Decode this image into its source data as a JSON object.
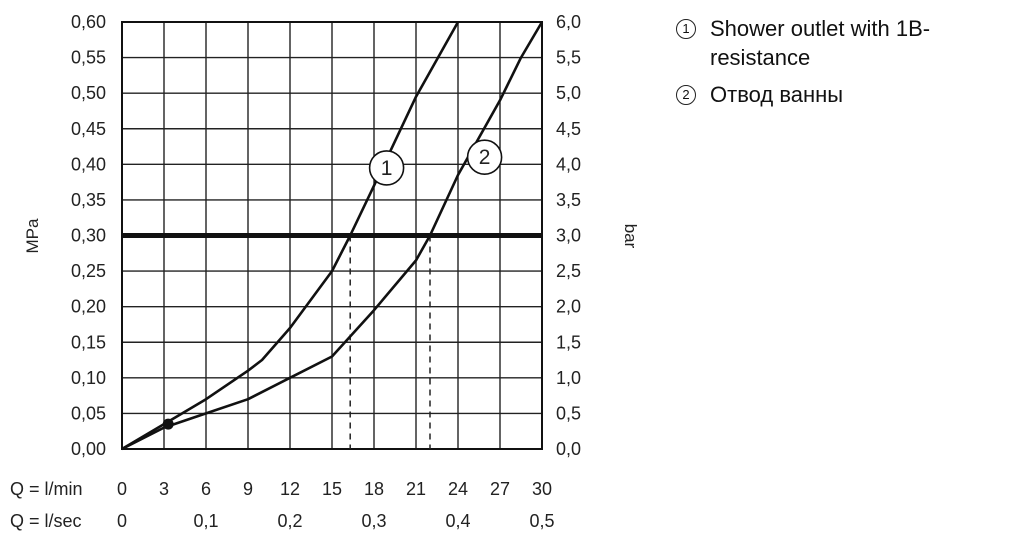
{
  "chart_data": {
    "type": "line",
    "title": "",
    "xlabel": "",
    "ylabel_left": "MPa",
    "ylabel_right": "bar",
    "x_range": [
      0,
      30
    ],
    "y_range": [
      0,
      0.6
    ],
    "y_right_range": [
      0,
      6.0
    ],
    "grid": true,
    "x_ticks_lmin": [
      "0",
      "3",
      "6",
      "9",
      "12",
      "15",
      "18",
      "21",
      "24",
      "27",
      "30"
    ],
    "x_ticks_lsec": [
      {
        "value": 0,
        "label": "0"
      },
      {
        "value": 6,
        "label": "0,1"
      },
      {
        "value": 12,
        "label": "0,2"
      },
      {
        "value": 18,
        "label": "0,3"
      },
      {
        "value": 24,
        "label": "0,4"
      },
      {
        "value": 30,
        "label": "0,5"
      }
    ],
    "x_row_labels": {
      "lmin": "Q = l/min",
      "lsec": "Q = l/sec"
    },
    "y_ticks_left": [
      "0,00",
      "0,05",
      "0,10",
      "0,15",
      "0,20",
      "0,25",
      "0,30",
      "0,35",
      "0,40",
      "0,45",
      "0,50",
      "0,55",
      "0,60"
    ],
    "y_ticks_right": [
      "0,0",
      "0,5",
      "1,0",
      "1,5",
      "2,0",
      "2,5",
      "3,0",
      "3,5",
      "4,0",
      "4,5",
      "5,0",
      "5,5",
      "6,0"
    ],
    "reference_line": {
      "y": 0.3
    },
    "dashed_markers": [
      {
        "x": 16.3,
        "y": 0.3
      },
      {
        "x": 22.0,
        "y": 0.3
      }
    ],
    "highlight_point": {
      "x": 3.3,
      "y": 0.035
    },
    "series": [
      {
        "name": "1",
        "label_at": {
          "x": 18.9,
          "y": 0.395
        },
        "points": [
          [
            0,
            0
          ],
          [
            3,
            0.035
          ],
          [
            6,
            0.07
          ],
          [
            9,
            0.11
          ],
          [
            10,
            0.125
          ],
          [
            12,
            0.17
          ],
          [
            15,
            0.25
          ],
          [
            16.3,
            0.3
          ],
          [
            18,
            0.37
          ],
          [
            21,
            0.495
          ],
          [
            24,
            0.61
          ]
        ]
      },
      {
        "name": "2",
        "label_at": {
          "x": 25.9,
          "y": 0.41
        },
        "points": [
          [
            0,
            0
          ],
          [
            3,
            0.03
          ],
          [
            6,
            0.05
          ],
          [
            9,
            0.07
          ],
          [
            12,
            0.1
          ],
          [
            15,
            0.13
          ],
          [
            18,
            0.195
          ],
          [
            21,
            0.265
          ],
          [
            22,
            0.3
          ],
          [
            24,
            0.385
          ],
          [
            27,
            0.49
          ],
          [
            28.5,
            0.55
          ],
          [
            30,
            0.6
          ]
        ]
      }
    ]
  },
  "legend": {
    "items": [
      {
        "marker": "1",
        "text": "Shower outlet with 1B-resistance"
      },
      {
        "marker": "2",
        "text": "Отвод ванны"
      }
    ]
  }
}
